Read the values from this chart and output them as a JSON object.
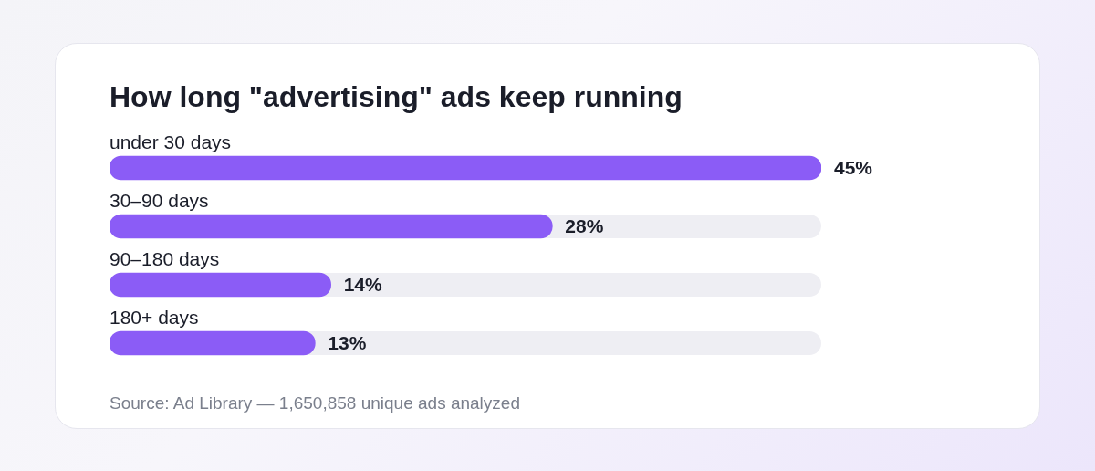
{
  "chart_data": {
    "type": "bar",
    "orientation": "horizontal",
    "title": "How long \"advertising\" ads keep running",
    "categories": [
      "under 30 days",
      "30–90 days",
      "90–180 days",
      "180+ days"
    ],
    "values": [
      45,
      28,
      14,
      13
    ],
    "value_labels": [
      "45%",
      "28%",
      "14%",
      "13%"
    ],
    "color": "#8b5cf6",
    "annotations": [
      "Source: Ad Library — 1,650,858 unique ads analyzed"
    ]
  }
}
